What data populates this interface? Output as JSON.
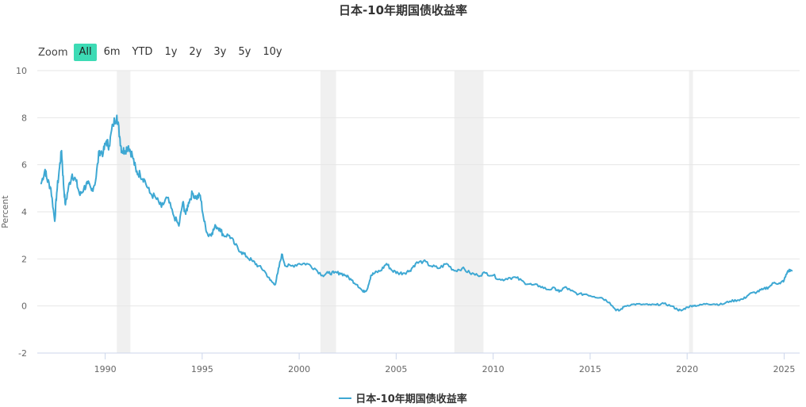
{
  "chart_data": {
    "type": "line",
    "title": "日本-10年期国债收益率",
    "ylabel": "Percent",
    "xlabel": "",
    "ylim": [
      -2,
      10
    ],
    "xlim": [
      1986.5,
      2025.8
    ],
    "y_ticks": [
      "-2",
      "0",
      "2",
      "4",
      "6",
      "8",
      "10"
    ],
    "x_ticks": [
      "1990",
      "1995",
      "2000",
      "2005",
      "2010",
      "2015",
      "2020",
      "2025"
    ],
    "recessions": [
      [
        1990.6,
        1991.3
      ],
      [
        2001.1,
        2001.9
      ],
      [
        2008.0,
        2009.5
      ],
      [
        2020.1,
        2020.3
      ]
    ],
    "series": [
      {
        "name": "日本-10年期国债收益率",
        "color": "#3ea8d3",
        "x": [
          1986.7,
          1986.9,
          1987.0,
          1987.2,
          1987.4,
          1987.5,
          1987.65,
          1987.75,
          1987.85,
          1987.95,
          1988.1,
          1988.3,
          1988.5,
          1988.7,
          1988.9,
          1989.1,
          1989.3,
          1989.5,
          1989.7,
          1989.9,
          1990.05,
          1990.2,
          1990.4,
          1990.6,
          1990.75,
          1990.85,
          1991.0,
          1991.2,
          1991.4,
          1991.6,
          1991.8,
          1992.0,
          1992.3,
          1992.6,
          1992.9,
          1993.2,
          1993.5,
          1993.8,
          1994.0,
          1994.15,
          1994.3,
          1994.5,
          1994.7,
          1994.9,
          1995.1,
          1995.3,
          1995.5,
          1995.7,
          1995.9,
          1996.1,
          1996.4,
          1996.7,
          1997.0,
          1997.3,
          1997.6,
          1997.9,
          1998.2,
          1998.5,
          1998.75,
          1998.9,
          1999.1,
          1999.3,
          1999.6,
          2000.0,
          2000.4,
          2000.8,
          2001.2,
          2001.5,
          2001.8,
          2002.1,
          2002.4,
          2002.7,
          2003.0,
          2003.3,
          2003.5,
          2003.7,
          2003.9,
          2004.2,
          2004.5,
          2004.8,
          2005.1,
          2005.4,
          2005.7,
          2006.0,
          2006.4,
          2006.8,
          2007.2,
          2007.6,
          2008.0,
          2008.4,
          2008.8,
          2009.2,
          2009.6,
          2010.0,
          2010.4,
          2010.8,
          2011.2,
          2011.6,
          2012.0,
          2012.4,
          2012.8,
          2013.2,
          2013.4,
          2013.7,
          2014.0,
          2014.4,
          2014.8,
          2015.2,
          2015.6,
          2016.0,
          2016.3,
          2016.5,
          2016.8,
          2017.2,
          2017.6,
          2018.0,
          2018.4,
          2018.8,
          2019.2,
          2019.5,
          2019.7,
          2020.0,
          2020.3,
          2020.6,
          2021.0,
          2021.4,
          2021.8,
          2022.2,
          2022.6,
          2022.9,
          2023.2,
          2023.6,
          2023.9,
          2024.2,
          2024.5,
          2024.8,
          2025.0,
          2025.2,
          2025.4
        ],
        "y": [
          5.2,
          5.8,
          5.4,
          5.0,
          3.6,
          4.8,
          5.9,
          6.6,
          5.2,
          4.3,
          5.0,
          5.6,
          5.3,
          4.7,
          5.0,
          5.2,
          4.9,
          5.3,
          6.6,
          6.5,
          7.0,
          6.8,
          7.7,
          8.1,
          7.2,
          6.6,
          6.6,
          6.8,
          6.4,
          5.7,
          5.6,
          5.4,
          4.8,
          4.6,
          4.2,
          4.6,
          3.9,
          3.4,
          4.4,
          3.9,
          4.4,
          4.8,
          4.6,
          4.7,
          3.6,
          3.0,
          3.1,
          3.4,
          3.3,
          3.0,
          3.0,
          2.6,
          2.3,
          2.1,
          1.9,
          1.7,
          1.5,
          1.1,
          0.9,
          1.4,
          2.2,
          1.7,
          1.7,
          1.8,
          1.8,
          1.6,
          1.3,
          1.4,
          1.4,
          1.4,
          1.3,
          1.1,
          0.9,
          0.6,
          0.7,
          1.3,
          1.4,
          1.5,
          1.8,
          1.5,
          1.4,
          1.4,
          1.5,
          1.8,
          1.9,
          1.7,
          1.6,
          1.8,
          1.5,
          1.6,
          1.4,
          1.3,
          1.4,
          1.3,
          1.1,
          1.2,
          1.2,
          1.0,
          0.9,
          0.85,
          0.7,
          0.75,
          0.6,
          0.8,
          0.65,
          0.5,
          0.5,
          0.4,
          0.35,
          0.15,
          -0.15,
          -0.2,
          0.0,
          0.07,
          0.07,
          0.05,
          0.05,
          0.1,
          0.0,
          -0.15,
          -0.2,
          -0.05,
          0.02,
          0.02,
          0.1,
          0.08,
          0.07,
          0.2,
          0.25,
          0.3,
          0.5,
          0.6,
          0.7,
          0.8,
          1.0,
          0.95,
          1.1,
          1.5,
          1.5
        ]
      }
    ]
  }
}
